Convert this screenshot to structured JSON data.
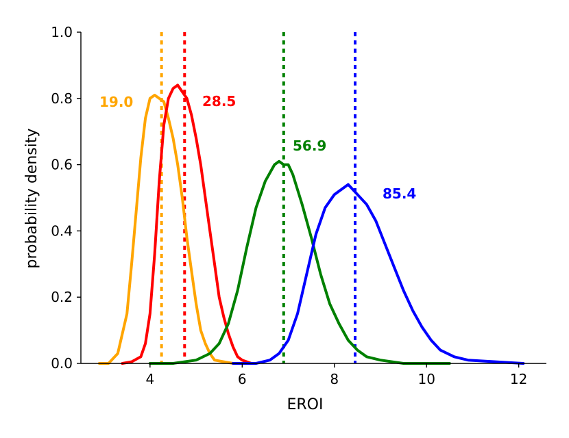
{
  "chart_data": {
    "type": "line",
    "title": "",
    "xlabel": "EROI",
    "ylabel": "probability density",
    "xlim": [
      2.5,
      12.6
    ],
    "ylim": [
      0,
      1.0
    ],
    "xticks": [
      4,
      6,
      8,
      10,
      12
    ],
    "yticks": [
      0.0,
      0.2,
      0.4,
      0.6,
      0.8,
      1.0
    ],
    "ytick_labels": [
      "0.0",
      "0.2",
      "0.4",
      "0.6",
      "0.8",
      "1.0"
    ],
    "grid": false,
    "legend": "none",
    "series": [
      {
        "color": "#ffa500",
        "annotation": "19.0",
        "mean_line": 4.25,
        "x": [
          2.9,
          3.1,
          3.3,
          3.5,
          3.6,
          3.7,
          3.8,
          3.9,
          4.0,
          4.1,
          4.2,
          4.3,
          4.4,
          4.5,
          4.6,
          4.7,
          4.8,
          4.9,
          5.0,
          5.1,
          5.2,
          5.3,
          5.4,
          5.6,
          5.8,
          6.0
        ],
        "y": [
          0.0,
          0.0,
          0.03,
          0.15,
          0.3,
          0.46,
          0.62,
          0.74,
          0.8,
          0.81,
          0.8,
          0.79,
          0.74,
          0.68,
          0.6,
          0.5,
          0.38,
          0.28,
          0.18,
          0.1,
          0.06,
          0.03,
          0.01,
          0.005,
          0.0,
          0.0
        ]
      },
      {
        "color": "#ff0000",
        "annotation": "28.5",
        "mean_line": 4.75,
        "x": [
          3.4,
          3.6,
          3.8,
          3.9,
          4.0,
          4.1,
          4.2,
          4.3,
          4.4,
          4.5,
          4.6,
          4.7,
          4.8,
          4.9,
          5.0,
          5.1,
          5.2,
          5.3,
          5.4,
          5.5,
          5.6,
          5.7,
          5.8,
          5.9,
          6.0,
          6.2
        ],
        "y": [
          0.0,
          0.005,
          0.02,
          0.06,
          0.15,
          0.33,
          0.55,
          0.72,
          0.8,
          0.83,
          0.84,
          0.82,
          0.8,
          0.75,
          0.68,
          0.6,
          0.5,
          0.4,
          0.3,
          0.2,
          0.14,
          0.09,
          0.05,
          0.02,
          0.01,
          0.0
        ]
      },
      {
        "color": "#008000",
        "annotation": "56.9",
        "mean_line": 6.9,
        "x": [
          4.0,
          4.5,
          5.0,
          5.3,
          5.5,
          5.7,
          5.9,
          6.1,
          6.3,
          6.5,
          6.7,
          6.8,
          6.9,
          7.0,
          7.1,
          7.3,
          7.5,
          7.7,
          7.9,
          8.1,
          8.3,
          8.5,
          8.7,
          9.0,
          9.5,
          10.5
        ],
        "y": [
          0.0,
          0.0,
          0.01,
          0.03,
          0.06,
          0.12,
          0.22,
          0.35,
          0.47,
          0.55,
          0.6,
          0.61,
          0.6,
          0.6,
          0.57,
          0.48,
          0.38,
          0.27,
          0.18,
          0.12,
          0.07,
          0.04,
          0.02,
          0.01,
          0.0,
          0.0
        ]
      },
      {
        "color": "#0000ff",
        "annotation": "85.4",
        "mean_line": 8.45,
        "x": [
          5.8,
          6.3,
          6.6,
          6.8,
          7.0,
          7.2,
          7.4,
          7.6,
          7.8,
          8.0,
          8.2,
          8.3,
          8.5,
          8.7,
          8.9,
          9.1,
          9.3,
          9.5,
          9.7,
          9.9,
          10.1,
          10.3,
          10.6,
          10.9,
          11.5,
          12.1
        ],
        "y": [
          0.0,
          0.0,
          0.01,
          0.03,
          0.07,
          0.15,
          0.27,
          0.39,
          0.47,
          0.51,
          0.53,
          0.54,
          0.51,
          0.48,
          0.43,
          0.36,
          0.29,
          0.22,
          0.16,
          0.11,
          0.07,
          0.04,
          0.02,
          0.01,
          0.005,
          0.0
        ]
      }
    ]
  }
}
